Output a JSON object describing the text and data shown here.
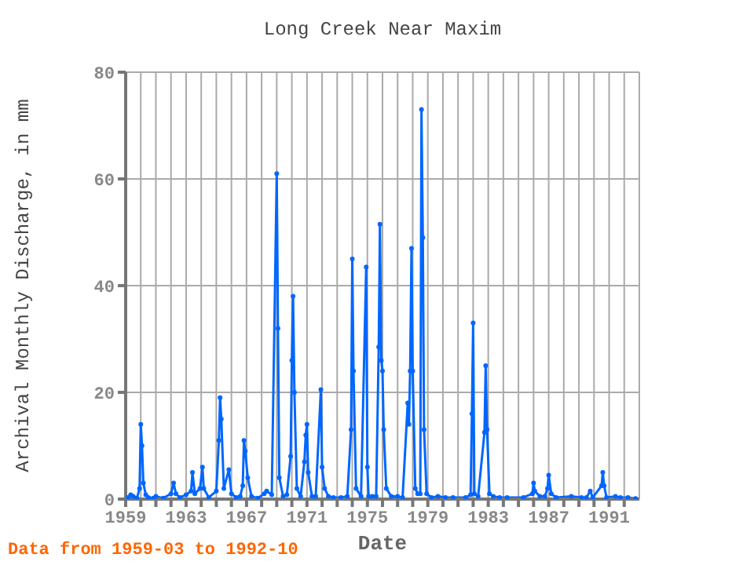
{
  "chart_data": {
    "type": "line",
    "title": "Long Creek Near Maxim",
    "xlabel": "Date",
    "ylabel": "Archival Monthly Discharge, in mm",
    "annotations": [
      "Data from 1959-03 to 1992-10"
    ],
    "xlim": [
      1959,
      1993
    ],
    "ylim": [
      0,
      80
    ],
    "xticks": [
      1959,
      {
        "value": 1960,
        "label": null
      },
      {
        "value": 1961,
        "label": null
      },
      {
        "value": 1962,
        "label": null
      },
      1963,
      {
        "value": 1964,
        "label": null
      },
      {
        "value": 1965,
        "label": null
      },
      {
        "value": 1966,
        "label": null
      },
      1967,
      {
        "value": 1968,
        "label": null
      },
      {
        "value": 1969,
        "label": null
      },
      {
        "value": 1970,
        "label": null
      },
      1971,
      {
        "value": 1972,
        "label": null
      },
      {
        "value": 1973,
        "label": null
      },
      {
        "value": 1974,
        "label": null
      },
      1975,
      {
        "value": 1976,
        "label": null
      },
      {
        "value": 1977,
        "label": null
      },
      {
        "value": 1978,
        "label": null
      },
      1979,
      {
        "value": 1980,
        "label": null
      },
      {
        "value": 1981,
        "label": null
      },
      {
        "value": 1982,
        "label": null
      },
      1983,
      {
        "value": 1984,
        "label": null
      },
      {
        "value": 1985,
        "label": null
      },
      {
        "value": 1986,
        "label": null
      },
      1987,
      {
        "value": 1988,
        "label": null
      },
      {
        "value": 1989,
        "label": null
      },
      {
        "value": 1990,
        "label": null
      },
      1991,
      {
        "value": 1992,
        "label": null
      }
    ],
    "yticks": [
      0,
      20,
      40,
      60,
      80
    ],
    "grid": true,
    "marker": "circle",
    "line_style": "solid",
    "series": [
      {
        "color": "#0066ff",
        "x": [
          1959.17,
          1959.33,
          1959.5,
          1959.75,
          1959.92,
          1960.0,
          1960.08,
          1960.17,
          1960.33,
          1960.5,
          1960.83,
          1961.0,
          1961.5,
          1962.0,
          1962.17,
          1962.33,
          1962.58,
          1963.0,
          1963.33,
          1963.42,
          1963.58,
          1963.92,
          1964.08,
          1964.17,
          1964.5,
          1965.0,
          1965.17,
          1965.25,
          1965.33,
          1965.5,
          1965.83,
          1966.0,
          1966.33,
          1966.58,
          1966.75,
          1966.83,
          1966.92,
          1967.08,
          1967.33,
          1967.75,
          1968.17,
          1968.33,
          1968.67,
          1969.0,
          1969.08,
          1969.17,
          1969.42,
          1969.67,
          1969.92,
          1970.0,
          1970.08,
          1970.17,
          1970.33,
          1970.58,
          1970.83,
          1970.92,
          1971.0,
          1971.08,
          1971.33,
          1971.58,
          1971.92,
          1972.0,
          1972.17,
          1972.42,
          1972.75,
          1973.25,
          1973.67,
          1973.92,
          1974.0,
          1974.08,
          1974.25,
          1974.58,
          1974.92,
          1975.0,
          1975.08,
          1975.33,
          1975.58,
          1975.75,
          1975.83,
          1975.92,
          1976.0,
          1976.08,
          1976.25,
          1976.58,
          1977.0,
          1977.33,
          1977.67,
          1977.75,
          1977.83,
          1977.92,
          1978.0,
          1978.17,
          1978.33,
          1978.5,
          1978.58,
          1978.67,
          1978.75,
          1978.92,
          1979.25,
          1979.67,
          1980.17,
          1980.67,
          1981.5,
          1981.83,
          1981.92,
          1982.0,
          1982.08,
          1982.33,
          1982.75,
          1982.83,
          1982.92,
          1983.08,
          1983.33,
          1983.75,
          1984.25,
          1985.33,
          1985.92,
          1986.0,
          1986.08,
          1986.42,
          1986.75,
          1986.92,
          1987.0,
          1987.17,
          1987.5,
          1988.5,
          1989.17,
          1989.5,
          1989.75,
          1989.92,
          1990.5,
          1990.58,
          1990.67,
          1990.83,
          1991.42,
          1991.75,
          1992.25,
          1992.75
        ],
        "values": [
          0.3,
          0.8,
          0.5,
          0.2,
          2,
          14,
          10,
          3,
          0.8,
          0.3,
          0.2,
          0.5,
          0.2,
          1,
          3,
          1,
          0.3,
          0.8,
          1.5,
          5,
          1,
          2,
          6,
          2,
          0.3,
          1.5,
          11,
          19,
          15,
          2,
          5.5,
          1,
          0.3,
          0.5,
          2.5,
          11,
          9,
          4,
          0.5,
          0.2,
          1,
          1.5,
          0.8,
          61,
          32,
          4,
          0.5,
          0.8,
          8,
          26,
          38,
          20,
          2,
          0.5,
          7,
          12,
          14,
          5,
          0.5,
          0.5,
          20.5,
          6,
          2,
          0.5,
          0.3,
          0.3,
          0.5,
          13,
          45,
          24,
          2,
          0.5,
          43.5,
          6,
          0.5,
          0.5,
          0.5,
          28.5,
          51.5,
          26,
          24,
          13,
          2,
          0.5,
          0.5,
          0.3,
          18,
          14,
          24,
          47,
          24,
          2,
          1,
          1,
          73,
          49,
          13,
          1,
          0.3,
          0.5,
          0.3,
          0.3,
          0.3,
          0.8,
          16,
          33,
          1,
          0.5,
          12.5,
          25,
          13,
          1,
          0.5,
          0.3,
          0.3,
          0.3,
          1,
          3,
          1.5,
          0.5,
          0.5,
          2,
          4.5,
          1,
          0.3,
          0.5,
          0.3,
          0.3,
          1.5,
          0.3,
          2.5,
          5,
          2.5,
          0.3,
          0.5,
          0.3,
          0.3,
          0.1
        ]
      }
    ]
  }
}
